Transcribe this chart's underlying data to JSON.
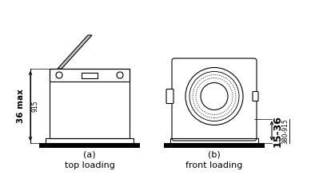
{
  "bg_color": "#ffffff",
  "line_color": "#000000",
  "fig_a_label": "(a)",
  "fig_a_sublabel": "top loading",
  "fig_b_label": "(b)",
  "fig_b_sublabel": "front loading",
  "dim_a_major": "36 max",
  "dim_a_minor": "915",
  "dim_b_major": "15-36",
  "dim_b_minor": "380-915"
}
